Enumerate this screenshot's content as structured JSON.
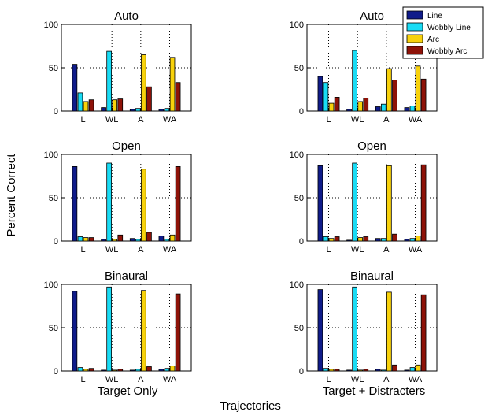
{
  "figure": {
    "ylabel": "Percent Correct",
    "xlabel": "Trajectories",
    "column_labels": [
      "Target Only",
      "Target + Distracters"
    ]
  },
  "colors": {
    "Line": "#0f1b8a",
    "Wobbly Line": "#19dcf5",
    "Arc": "#f8d20c",
    "Wobbly Arc": "#8e1208"
  },
  "legend": {
    "placement": "top-right",
    "entries": [
      "Line",
      "Wobbly Line",
      "Arc",
      "Wobbly Arc"
    ]
  },
  "chart_data": [
    {
      "type": "bar",
      "title": "Auto",
      "categories": [
        "L",
        "WL",
        "A",
        "WA"
      ],
      "ylim": [
        0,
        100
      ],
      "yticks": [
        0,
        50,
        100
      ],
      "grid": "dotted",
      "series": [
        {
          "name": "Line",
          "values": [
            54,
            4,
            2,
            2
          ]
        },
        {
          "name": "Wobbly Line",
          "values": [
            21,
            69,
            3,
            3
          ]
        },
        {
          "name": "Arc",
          "values": [
            11,
            13,
            65,
            62
          ]
        },
        {
          "name": "Wobbly Arc",
          "values": [
            13,
            14,
            28,
            33
          ]
        }
      ]
    },
    {
      "type": "bar",
      "title": "Auto",
      "categories": [
        "L",
        "WL",
        "A",
        "WA"
      ],
      "ylim": [
        0,
        100
      ],
      "yticks": [
        0,
        50,
        100
      ],
      "grid": "dotted",
      "series": [
        {
          "name": "Line",
          "values": [
            40,
            2,
            5,
            4
          ]
        },
        {
          "name": "Wobbly Line",
          "values": [
            33,
            70,
            8,
            6
          ]
        },
        {
          "name": "Arc",
          "values": [
            9,
            11,
            49,
            52
          ]
        },
        {
          "name": "Wobbly Arc",
          "values": [
            16,
            15,
            36,
            37
          ]
        }
      ]
    },
    {
      "type": "bar",
      "title": "Open",
      "categories": [
        "L",
        "WL",
        "A",
        "WA"
      ],
      "ylim": [
        0,
        100
      ],
      "yticks": [
        0,
        50,
        100
      ],
      "grid": "dotted",
      "series": [
        {
          "name": "Line",
          "values": [
            86,
            2,
            3,
            6
          ]
        },
        {
          "name": "Wobbly Line",
          "values": [
            5,
            90,
            2,
            2
          ]
        },
        {
          "name": "Arc",
          "values": [
            4,
            2,
            83,
            7
          ]
        },
        {
          "name": "Wobbly Arc",
          "values": [
            4,
            7,
            10,
            86
          ]
        }
      ]
    },
    {
      "type": "bar",
      "title": "Open",
      "categories": [
        "L",
        "WL",
        "A",
        "WA"
      ],
      "ylim": [
        0,
        100
      ],
      "yticks": [
        0,
        50,
        100
      ],
      "grid": "dotted",
      "series": [
        {
          "name": "Line",
          "values": [
            87,
            1,
            3,
            2
          ]
        },
        {
          "name": "Wobbly Line",
          "values": [
            5,
            90,
            3,
            3
          ]
        },
        {
          "name": "Arc",
          "values": [
            3,
            4,
            87,
            6
          ]
        },
        {
          "name": "Wobbly Arc",
          "values": [
            5,
            5,
            8,
            88
          ]
        }
      ]
    },
    {
      "type": "bar",
      "title": "Binaural",
      "categories": [
        "L",
        "WL",
        "A",
        "WA"
      ],
      "ylim": [
        0,
        100
      ],
      "yticks": [
        0,
        50,
        100
      ],
      "grid": "dotted",
      "series": [
        {
          "name": "Line",
          "values": [
            92,
            1,
            1,
            2
          ]
        },
        {
          "name": "Wobbly Line",
          "values": [
            4,
            97,
            2,
            3
          ]
        },
        {
          "name": "Arc",
          "values": [
            2,
            1,
            93,
            6
          ]
        },
        {
          "name": "Wobbly Arc",
          "values": [
            3,
            2,
            5,
            89
          ]
        }
      ]
    },
    {
      "type": "bar",
      "title": "Binaural",
      "categories": [
        "L",
        "WL",
        "A",
        "WA"
      ],
      "ylim": [
        0,
        100
      ],
      "yticks": [
        0,
        50,
        100
      ],
      "grid": "dotted",
      "series": [
        {
          "name": "Line",
          "values": [
            94,
            1,
            2,
            1
          ]
        },
        {
          "name": "Wobbly Line",
          "values": [
            3,
            97,
            1,
            4
          ]
        },
        {
          "name": "Arc",
          "values": [
            2,
            1,
            91,
            7
          ]
        },
        {
          "name": "Wobbly Arc",
          "values": [
            2,
            2,
            7,
            88
          ]
        }
      ]
    }
  ]
}
